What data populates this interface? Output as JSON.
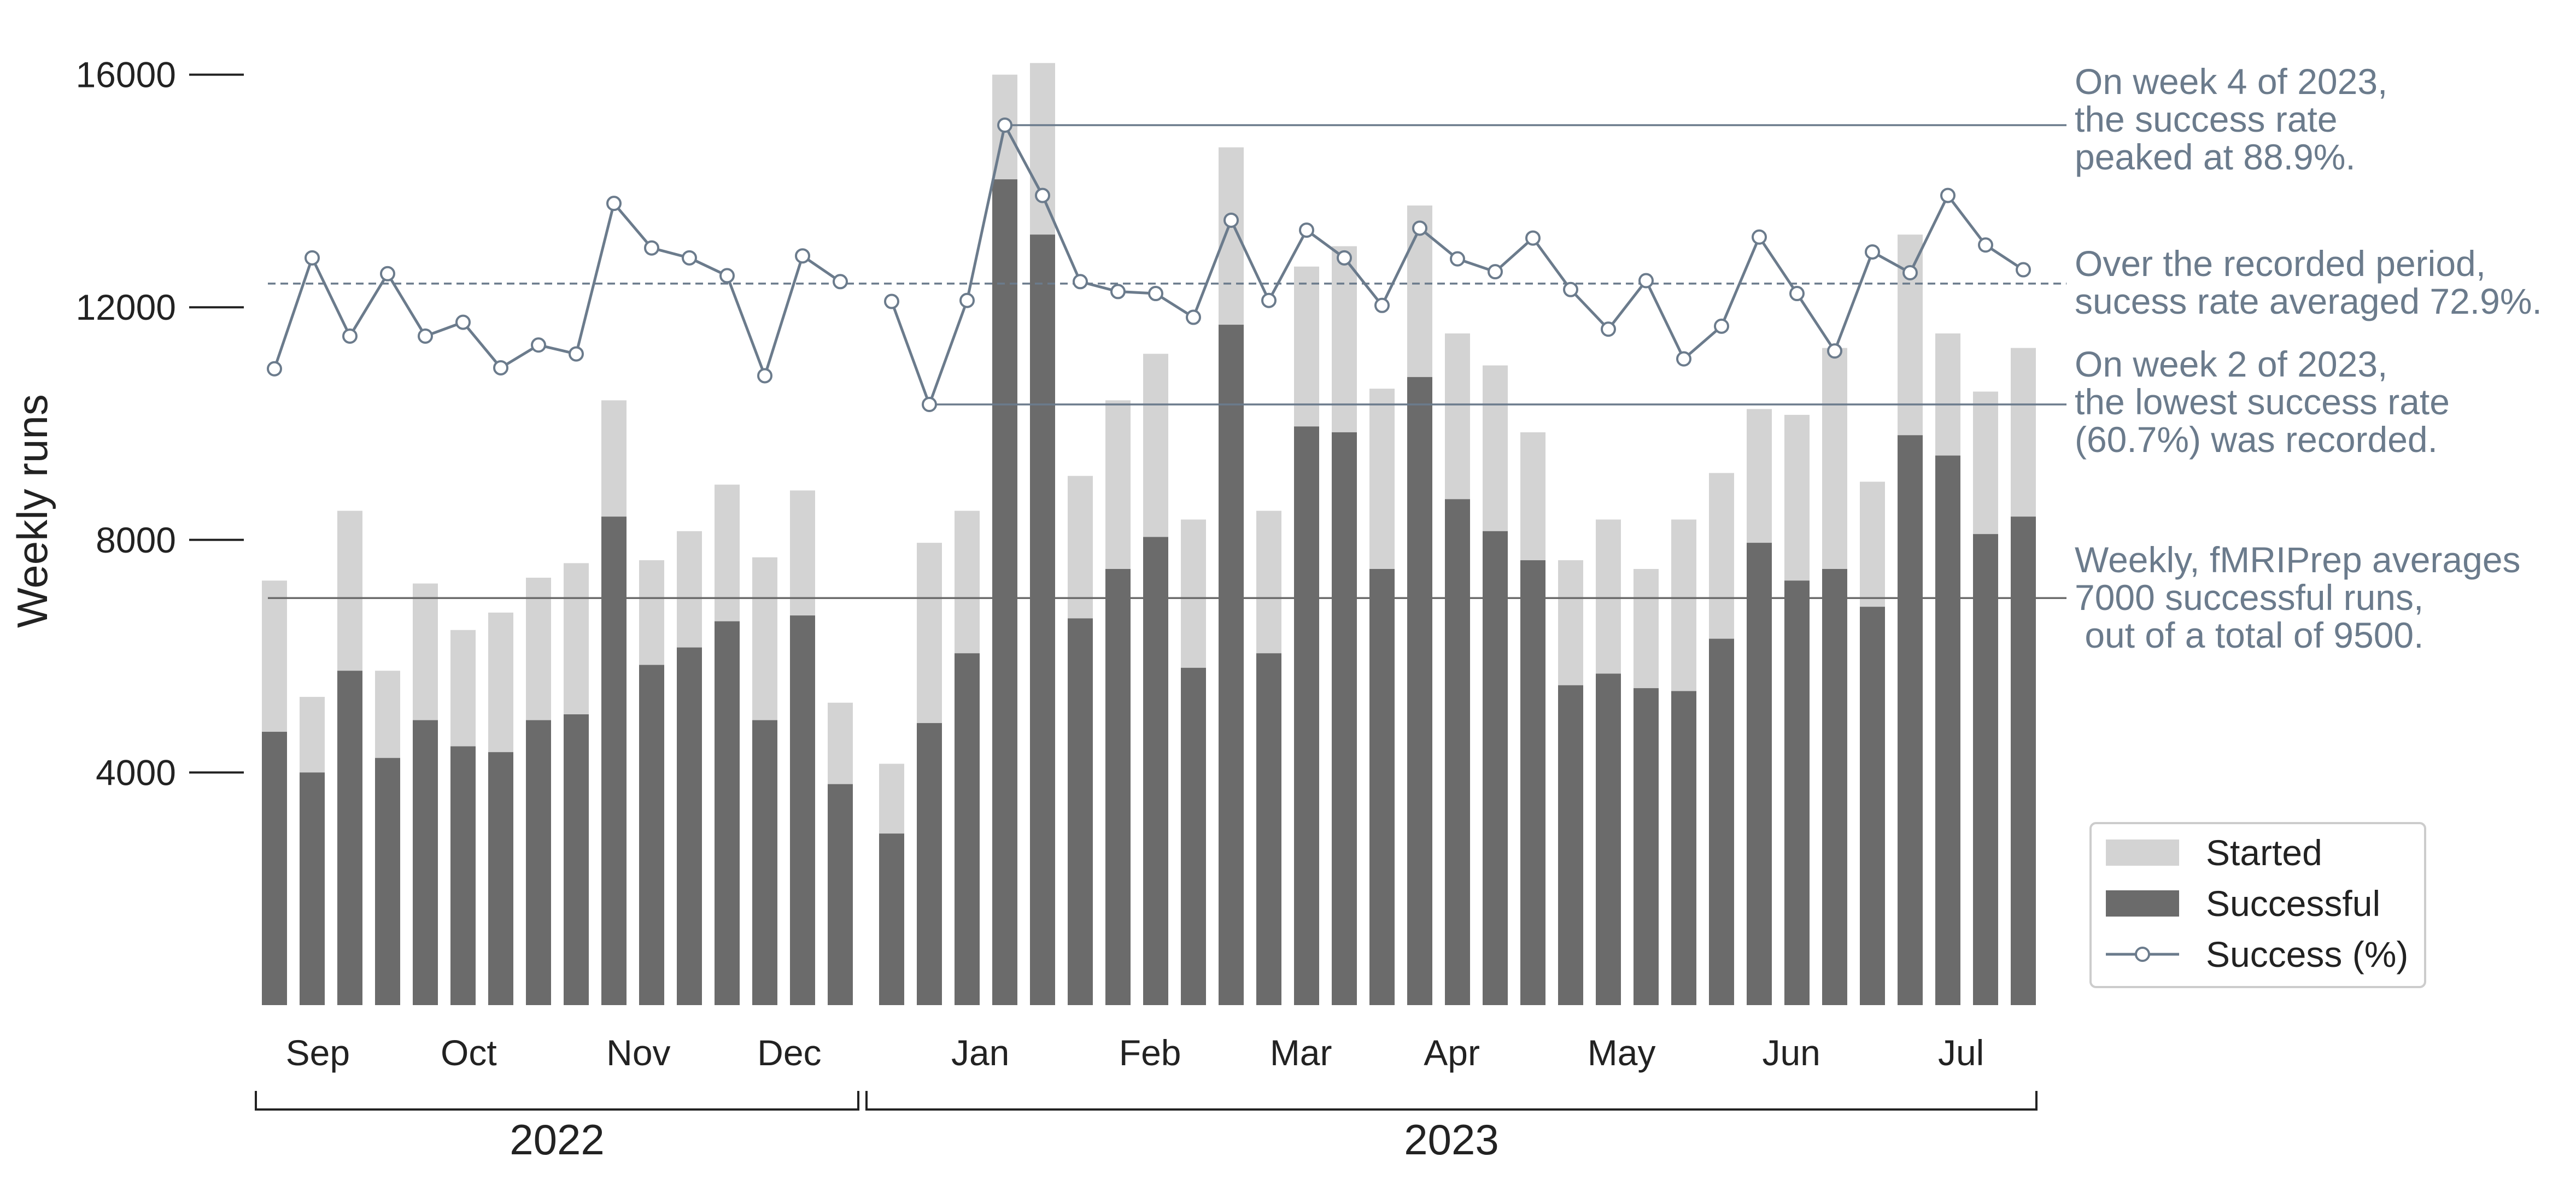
{
  "chart_data": {
    "type": "bar",
    "ylabel": "Weekly runs",
    "yticks": [
      4000,
      8000,
      12000,
      16000
    ],
    "ylim": [
      0,
      16400
    ],
    "pct_scale_note": "",
    "month_labels": [
      {
        "label": "Sep",
        "week": 1.15
      },
      {
        "label": "Oct",
        "week": 5.15
      },
      {
        "label": "Nov",
        "week": 9.65
      },
      {
        "label": "Dec",
        "week": 13.65
      },
      {
        "label": "Jan",
        "week": 18.35
      },
      {
        "label": "Feb",
        "week": 22.85
      },
      {
        "label": "Mar",
        "week": 26.85
      },
      {
        "label": "Apr",
        "week": 30.85
      },
      {
        "label": "May",
        "week": 35.35
      },
      {
        "label": "Jun",
        "week": 39.85
      },
      {
        "label": "Jul",
        "week": 44.35
      }
    ],
    "years": [
      {
        "label": "2022",
        "start_week": 0,
        "end_week": 16
      },
      {
        "label": "2023",
        "start_week": 16.2,
        "end_week": 47.3
      }
    ],
    "series": [
      {
        "name": "Started",
        "color": "#d3d3d3",
        "values": [
          7300,
          5300,
          8500,
          5750,
          7250,
          6450,
          6750,
          7350,
          7600,
          10400,
          7650,
          8150,
          8950,
          7700,
          8850,
          5200,
          4150,
          7950,
          8500,
          16000,
          16200,
          9100,
          10400,
          11200,
          8350,
          14750,
          8500,
          12700,
          13050,
          10600,
          13750,
          11550,
          11000,
          9850,
          7650,
          8350,
          7500,
          8350,
          9150,
          10250,
          10150,
          11300,
          9000,
          13250,
          11550,
          10550,
          11300
        ]
      },
      {
        "name": "Successful",
        "color": "#6b6b6b",
        "values": [
          4700,
          4000,
          5750,
          4250,
          4900,
          4450,
          4350,
          4900,
          5000,
          8400,
          5850,
          6150,
          6600,
          4900,
          6700,
          3800,
          2950,
          4850,
          6050,
          14200,
          13250,
          6650,
          7500,
          8050,
          5800,
          11700,
          6050,
          9950,
          9850,
          7500,
          10800,
          8700,
          8150,
          7650,
          5500,
          5700,
          5450,
          5400,
          6300,
          7950,
          7300,
          7500,
          6850,
          9800,
          9450,
          8100,
          8400
        ]
      },
      {
        "name": "Success (%)",
        "color": "#6b7b8c",
        "values": [
          64.3,
          75.5,
          67.6,
          73.9,
          67.6,
          69.0,
          64.4,
          66.7,
          65.8,
          81.0,
          76.5,
          75.5,
          73.7,
          63.6,
          75.7,
          73.1,
          71.1,
          60.7,
          71.2,
          88.9,
          81.8,
          73.1,
          72.1,
          71.9,
          69.5,
          79.3,
          71.2,
          78.3,
          75.5,
          70.7,
          78.5,
          75.4,
          74.1,
          77.5,
          72.3,
          68.3,
          73.2,
          65.3,
          68.6,
          77.6,
          71.9,
          66.1,
          76.1,
          74.0,
          81.8,
          76.8,
          74.3
        ]
      }
    ],
    "reference_lines": [
      {
        "kind": "peak",
        "value": 88.9,
        "color": "#6b7b8c"
      },
      {
        "kind": "mean-pct",
        "value": 72.9,
        "color": "#6b7b8c",
        "dashed": true
      },
      {
        "kind": "lowest",
        "value": 60.7,
        "color": "#6b7b8c"
      },
      {
        "kind": "mean-success",
        "value": 7000,
        "color": "#6b6b6b"
      }
    ],
    "annotations": [
      {
        "lines": [
          "On week 4 of 2023,",
          "the success rate",
          "peaked at 88.9%."
        ]
      },
      {
        "lines": [
          "Over the recorded period,",
          "sucess rate averaged 72.9%."
        ]
      },
      {
        "lines": [
          "On week 2 of 2023,",
          "the lowest success rate",
          "(60.7%) was recorded."
        ]
      },
      {
        "lines": [
          "Weekly, fMRIPrep averages",
          "7000 successful runs,",
          " out of a total of 9500."
        ]
      }
    ],
    "legend": {
      "position": "bottom-right",
      "items": [
        "Started",
        "Successful",
        "Success (%)"
      ]
    }
  }
}
